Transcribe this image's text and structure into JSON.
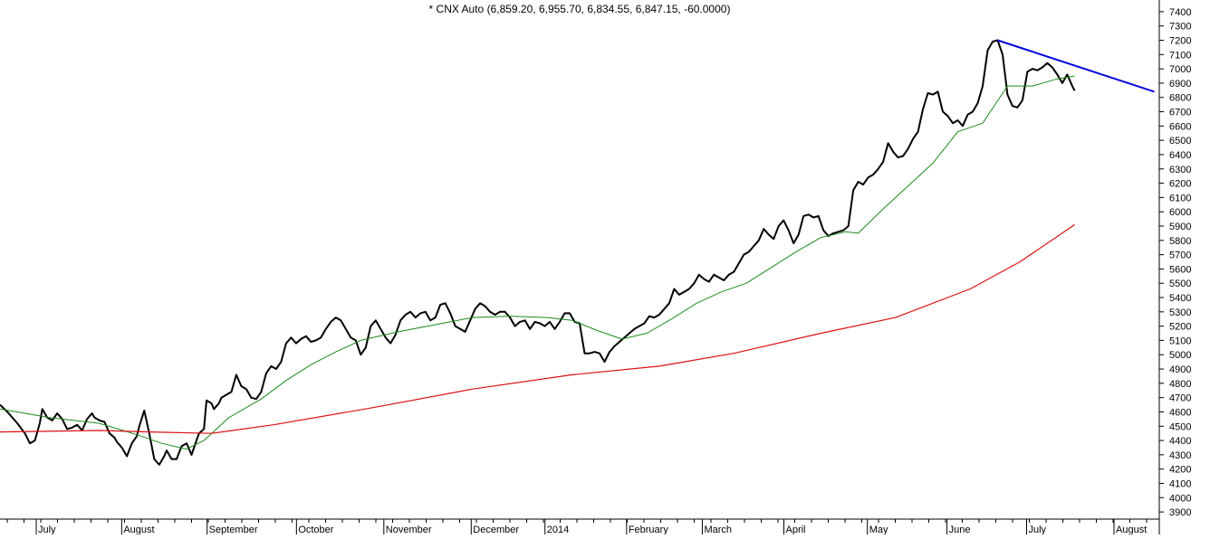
{
  "chart_data": {
    "type": "line",
    "title": "* CNX Auto (6,859.20, 6,955.70, 6,834.55, 6,847.15, -60.0000)",
    "ylim": [
      3850,
      7450
    ],
    "y_ticks": [
      3900,
      4000,
      4100,
      4200,
      4300,
      4400,
      4500,
      4600,
      4700,
      4800,
      4900,
      5000,
      5100,
      5200,
      5300,
      5400,
      5500,
      5600,
      5700,
      5800,
      5900,
      6000,
      6100,
      6200,
      6300,
      6400,
      6500,
      6600,
      6700,
      6800,
      6900,
      7000,
      7100,
      7200,
      7300,
      7400
    ],
    "month_labels": [
      "July",
      "August",
      "September",
      "October",
      "November",
      "December",
      "2014",
      "February",
      "March",
      "April",
      "May",
      "June",
      "July",
      "August"
    ],
    "grid": false,
    "series": [
      {
        "color": "#000000",
        "values": [
          [
            0,
            4650
          ],
          [
            3,
            4600
          ],
          [
            5,
            4560
          ],
          [
            7,
            4520
          ],
          [
            10,
            4450
          ],
          [
            12,
            4380
          ],
          [
            14,
            4400
          ],
          [
            16,
            4520
          ],
          [
            17,
            4620
          ],
          [
            19,
            4560
          ],
          [
            21,
            4540
          ],
          [
            23,
            4590
          ],
          [
            25,
            4550
          ],
          [
            27,
            4480
          ],
          [
            29,
            4490
          ],
          [
            31,
            4510
          ],
          [
            33,
            4470
          ],
          [
            35,
            4550
          ],
          [
            37,
            4590
          ],
          [
            38,
            4560
          ],
          [
            40,
            4540
          ],
          [
            42,
            4530
          ],
          [
            44,
            4450
          ],
          [
            46,
            4420
          ],
          [
            47,
            4390
          ],
          [
            49,
            4350
          ],
          [
            51,
            4290
          ],
          [
            53,
            4380
          ],
          [
            55,
            4430
          ],
          [
            56,
            4500
          ],
          [
            58,
            4610
          ],
          [
            60,
            4450
          ],
          [
            62,
            4270
          ],
          [
            64,
            4230
          ],
          [
            66,
            4290
          ],
          [
            67,
            4330
          ],
          [
            69,
            4270
          ],
          [
            71,
            4270
          ],
          [
            73,
            4360
          ],
          [
            75,
            4380
          ],
          [
            77,
            4300
          ],
          [
            78,
            4350
          ],
          [
            80,
            4450
          ],
          [
            82,
            4480
          ],
          [
            83,
            4680
          ],
          [
            85,
            4660
          ],
          [
            86,
            4620
          ],
          [
            88,
            4660
          ],
          [
            89,
            4700
          ],
          [
            91,
            4720
          ],
          [
            93,
            4740
          ],
          [
            95,
            4860
          ],
          [
            97,
            4780
          ],
          [
            99,
            4760
          ],
          [
            101,
            4700
          ],
          [
            103,
            4690
          ],
          [
            105,
            4740
          ],
          [
            107,
            4870
          ],
          [
            109,
            4920
          ],
          [
            111,
            4900
          ],
          [
            113,
            4950
          ],
          [
            115,
            5080
          ],
          [
            117,
            5120
          ],
          [
            119,
            5080
          ],
          [
            121,
            5110
          ],
          [
            123,
            5130
          ],
          [
            125,
            5090
          ],
          [
            127,
            5100
          ],
          [
            129,
            5120
          ],
          [
            131,
            5180
          ],
          [
            133,
            5230
          ],
          [
            135,
            5260
          ],
          [
            137,
            5240
          ],
          [
            139,
            5180
          ],
          [
            141,
            5120
          ],
          [
            143,
            5100
          ],
          [
            145,
            5000
          ],
          [
            147,
            5050
          ],
          [
            149,
            5200
          ],
          [
            151,
            5240
          ],
          [
            153,
            5180
          ],
          [
            155,
            5120
          ],
          [
            157,
            5080
          ],
          [
            159,
            5140
          ],
          [
            161,
            5240
          ],
          [
            163,
            5280
          ],
          [
            165,
            5300
          ],
          [
            167,
            5260
          ],
          [
            169,
            5290
          ],
          [
            171,
            5300
          ],
          [
            173,
            5240
          ],
          [
            175,
            5260
          ],
          [
            177,
            5350
          ],
          [
            179,
            5360
          ],
          [
            181,
            5290
          ],
          [
            183,
            5200
          ],
          [
            185,
            5180
          ],
          [
            187,
            5160
          ],
          [
            189,
            5240
          ],
          [
            191,
            5320
          ],
          [
            193,
            5360
          ],
          [
            195,
            5340
          ],
          [
            197,
            5300
          ],
          [
            199,
            5280
          ],
          [
            201,
            5300
          ],
          [
            203,
            5300
          ],
          [
            205,
            5260
          ],
          [
            207,
            5200
          ],
          [
            209,
            5230
          ],
          [
            211,
            5240
          ],
          [
            213,
            5180
          ],
          [
            215,
            5230
          ],
          [
            217,
            5220
          ],
          [
            219,
            5200
          ],
          [
            221,
            5230
          ],
          [
            223,
            5180
          ],
          [
            225,
            5230
          ],
          [
            227,
            5290
          ],
          [
            229,
            5290
          ],
          [
            231,
            5230
          ],
          [
            233,
            5220
          ],
          [
            235,
            5010
          ],
          [
            237,
            5010
          ],
          [
            239,
            5020
          ],
          [
            241,
            5010
          ],
          [
            243,
            4950
          ],
          [
            245,
            5020
          ],
          [
            247,
            5060
          ],
          [
            249,
            5090
          ],
          [
            251,
            5120
          ],
          [
            253,
            5150
          ],
          [
            255,
            5180
          ],
          [
            257,
            5200
          ],
          [
            259,
            5220
          ],
          [
            261,
            5270
          ],
          [
            263,
            5260
          ],
          [
            265,
            5280
          ],
          [
            267,
            5320
          ],
          [
            269,
            5360
          ],
          [
            271,
            5460
          ],
          [
            273,
            5420
          ],
          [
            275,
            5440
          ],
          [
            277,
            5460
          ],
          [
            279,
            5500
          ],
          [
            281,
            5560
          ],
          [
            283,
            5530
          ],
          [
            285,
            5510
          ],
          [
            287,
            5560
          ],
          [
            289,
            5540
          ],
          [
            291,
            5520
          ],
          [
            293,
            5560
          ],
          [
            295,
            5580
          ],
          [
            297,
            5640
          ],
          [
            299,
            5700
          ],
          [
            301,
            5720
          ],
          [
            303,
            5760
          ],
          [
            305,
            5800
          ],
          [
            307,
            5880
          ],
          [
            309,
            5840
          ],
          [
            311,
            5810
          ],
          [
            313,
            5900
          ],
          [
            315,
            5940
          ],
          [
            317,
            5870
          ],
          [
            319,
            5780
          ],
          [
            321,
            5840
          ],
          [
            323,
            5970
          ],
          [
            325,
            5980
          ],
          [
            327,
            5960
          ],
          [
            329,
            5970
          ],
          [
            331,
            5870
          ],
          [
            333,
            5830
          ],
          [
            335,
            5850
          ],
          [
            337,
            5860
          ],
          [
            339,
            5870
          ],
          [
            341,
            5900
          ],
          [
            343,
            6150
          ],
          [
            345,
            6210
          ],
          [
            347,
            6190
          ],
          [
            349,
            6240
          ],
          [
            351,
            6260
          ],
          [
            353,
            6300
          ],
          [
            355,
            6350
          ],
          [
            357,
            6480
          ],
          [
            359,
            6420
          ],
          [
            361,
            6380
          ],
          [
            363,
            6390
          ],
          [
            365,
            6440
          ],
          [
            367,
            6510
          ],
          [
            369,
            6560
          ],
          [
            371,
            6720
          ],
          [
            373,
            6830
          ],
          [
            375,
            6820
          ],
          [
            377,
            6840
          ],
          [
            379,
            6700
          ],
          [
            381,
            6670
          ],
          [
            383,
            6620
          ],
          [
            385,
            6640
          ],
          [
            387,
            6600
          ],
          [
            389,
            6680
          ],
          [
            391,
            6700
          ],
          [
            393,
            6760
          ],
          [
            395,
            6880
          ],
          [
            397,
            7130
          ],
          [
            399,
            7190
          ],
          [
            401,
            7200
          ],
          [
            403,
            7100
          ],
          [
            405,
            6820
          ],
          [
            407,
            6740
          ],
          [
            409,
            6730
          ],
          [
            411,
            6780
          ],
          [
            413,
            6980
          ],
          [
            415,
            7000
          ],
          [
            417,
            6990
          ],
          [
            419,
            7010
          ],
          [
            421,
            7040
          ],
          [
            423,
            7010
          ],
          [
            425,
            6960
          ],
          [
            427,
            6900
          ],
          [
            429,
            6960
          ],
          [
            431,
            6880
          ],
          [
            432,
            6847
          ]
        ]
      },
      {
        "color": "#1a8a1a",
        "values": [
          [
            0,
            4620
          ],
          [
            20,
            4560
          ],
          [
            40,
            4520
          ],
          [
            55,
            4440
          ],
          [
            65,
            4380
          ],
          [
            75,
            4340
          ],
          [
            82,
            4400
          ],
          [
            92,
            4560
          ],
          [
            105,
            4690
          ],
          [
            115,
            4820
          ],
          [
            125,
            4930
          ],
          [
            135,
            5020
          ],
          [
            145,
            5100
          ],
          [
            160,
            5160
          ],
          [
            175,
            5210
          ],
          [
            190,
            5260
          ],
          [
            205,
            5270
          ],
          [
            220,
            5260
          ],
          [
            230,
            5240
          ],
          [
            240,
            5170
          ],
          [
            250,
            5110
          ],
          [
            260,
            5150
          ],
          [
            270,
            5250
          ],
          [
            280,
            5360
          ],
          [
            290,
            5440
          ],
          [
            300,
            5500
          ],
          [
            310,
            5610
          ],
          [
            320,
            5720
          ],
          [
            330,
            5820
          ],
          [
            340,
            5860
          ],
          [
            345,
            5850
          ],
          [
            355,
            6020
          ],
          [
            365,
            6180
          ],
          [
            375,
            6340
          ],
          [
            385,
            6560
          ],
          [
            395,
            6620
          ],
          [
            400,
            6750
          ],
          [
            405,
            6880
          ],
          [
            415,
            6880
          ],
          [
            425,
            6930
          ],
          [
            432,
            6950
          ]
        ]
      },
      {
        "color": "#dd1010",
        "values": [
          [
            0,
            4460
          ],
          [
            40,
            4470
          ],
          [
            60,
            4460
          ],
          [
            85,
            4450
          ],
          [
            110,
            4510
          ],
          [
            150,
            4630
          ],
          [
            190,
            4760
          ],
          [
            230,
            4860
          ],
          [
            265,
            4920
          ],
          [
            295,
            5010
          ],
          [
            330,
            5150
          ],
          [
            360,
            5260
          ],
          [
            390,
            5460
          ],
          [
            410,
            5650
          ],
          [
            432,
            5910
          ]
        ]
      },
      {
        "color": "#0000dd",
        "values": [
          [
            401,
            7200
          ],
          [
            464,
            6840
          ]
        ]
      }
    ]
  }
}
